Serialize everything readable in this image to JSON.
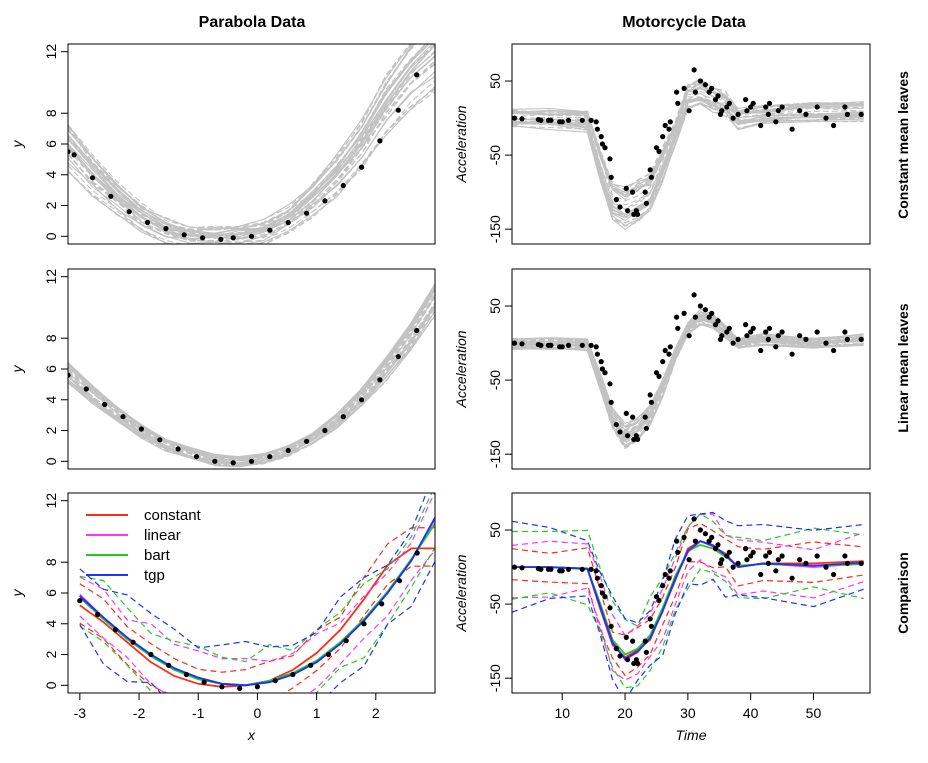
{
  "figure": {
    "col_titles": [
      "Parabola Data",
      "Motorcycle Data"
    ],
    "row_labels": [
      "Constant mean leaves",
      "Linear mean leaves",
      "Comparison"
    ]
  },
  "chart_data": [
    {
      "id": "parabola-constant",
      "type": "line",
      "title": "Parabola Data",
      "xlabel": "",
      "ylabel": "y",
      "xlim": [
        -3,
        3
      ],
      "ylim": [
        -0.5,
        12.5
      ],
      "yticks": [
        0,
        2,
        4,
        6,
        8,
        12
      ],
      "show_xticks": false,
      "band": "grey-posterior-draws",
      "series": [
        {
          "values_x": [
            -3,
            -2.6,
            -2.2,
            -1.8,
            -1.4,
            -1.0,
            -0.6,
            -0.2,
            0.2,
            0.6,
            1.0,
            1.4,
            1.8,
            2.2,
            2.6,
            3.0
          ],
          "values_y": [
            5.8,
            4.0,
            2.5,
            1.2,
            0.4,
            0.0,
            -0.1,
            0.0,
            0.3,
            1.1,
            2.4,
            4.0,
            6.0,
            8.5,
            10.5,
            12.0
          ]
        }
      ],
      "points_x": [
        -3.0,
        -2.9,
        -2.6,
        -2.3,
        -2.0,
        -1.7,
        -1.4,
        -1.1,
        -0.8,
        -0.5,
        -0.3,
        0.0,
        0.3,
        0.6,
        0.9,
        1.2,
        1.5,
        1.8,
        2.1,
        2.4,
        2.7
      ],
      "points_y": [
        5.5,
        5.3,
        3.8,
        2.6,
        1.6,
        0.9,
        0.5,
        0.1,
        -0.1,
        -0.2,
        -0.1,
        0.0,
        0.4,
        0.9,
        1.5,
        2.3,
        3.3,
        4.5,
        6.2,
        8.2,
        10.5
      ]
    },
    {
      "id": "motorcycle-constant",
      "type": "line",
      "title": "Motorcycle Data",
      "xlabel": "",
      "ylabel": "Acceleration",
      "xlim": [
        2,
        59
      ],
      "ylim": [
        -170,
        100
      ],
      "yticks": [
        -150,
        -50,
        50
      ],
      "show_xticks": false,
      "band": "grey-posterior-draws",
      "series": [
        {
          "values_x": [
            2,
            8,
            14,
            16,
            18,
            20,
            22,
            24,
            26,
            28,
            30,
            32,
            34,
            36,
            38,
            42,
            50,
            58
          ],
          "values_y": [
            0,
            0,
            -2,
            -60,
            -110,
            -120,
            -110,
            -100,
            -60,
            -20,
            30,
            35,
            25,
            20,
            0,
            5,
            10,
            10
          ]
        }
      ],
      "points_x": [
        2.4,
        3.6,
        6.2,
        6.6,
        7.8,
        8.2,
        9.6,
        10.0,
        11.0,
        13.2,
        14.6,
        15.4,
        15.6,
        16.2,
        16.4,
        16.8,
        17.6,
        17.8,
        18.6,
        19.2,
        20.2,
        20.4,
        21.2,
        21.4,
        21.8,
        22.0,
        23.2,
        23.4,
        24.0,
        24.2,
        25.0,
        25.4,
        26.0,
        26.4,
        27.0,
        27.2,
        28.2,
        28.4,
        29.4,
        30.2,
        31.0,
        31.2,
        32.0,
        32.8,
        33.4,
        33.8,
        34.4,
        34.8,
        35.2,
        35.4,
        36.2,
        36.6,
        37.2,
        38.0,
        39.2,
        39.4,
        40.0,
        40.4,
        41.6,
        42.4,
        42.8,
        43.0,
        44.0,
        44.4,
        45.0,
        46.6,
        47.8,
        48.8,
        50.6,
        52.0,
        53.2,
        55.0,
        55.4,
        57.6
      ],
      "points_y": [
        0,
        -1,
        -2,
        -3,
        -3,
        -3,
        -5,
        -5,
        -3,
        -3,
        -3,
        -5,
        -15,
        -25,
        -35,
        -40,
        -55,
        -80,
        -110,
        -120,
        -95,
        -125,
        -100,
        -130,
        -125,
        -130,
        -100,
        -115,
        -70,
        -80,
        -40,
        -45,
        -25,
        -10,
        -15,
        -5,
        35,
        20,
        40,
        10,
        65,
        35,
        50,
        45,
        35,
        40,
        25,
        30,
        5,
        10,
        15,
        20,
        0,
        5,
        25,
        10,
        15,
        20,
        -10,
        15,
        5,
        20,
        -5,
        10,
        15,
        -15,
        10,
        5,
        15,
        0,
        -10,
        15,
        5,
        5
      ]
    },
    {
      "id": "parabola-linear",
      "type": "line",
      "title": "",
      "xlabel": "",
      "ylabel": "y",
      "xlim": [
        -3,
        3
      ],
      "ylim": [
        -0.5,
        12.5
      ],
      "yticks": [
        0,
        2,
        4,
        6,
        8,
        12
      ],
      "show_xticks": false,
      "band": "grey-posterior-draws",
      "series": [
        {
          "values_x": [
            -3,
            -2.6,
            -2.2,
            -1.8,
            -1.4,
            -1.0,
            -0.6,
            -0.2,
            0.2,
            0.6,
            1.0,
            1.4,
            1.8,
            2.2,
            2.6,
            3.0
          ],
          "values_y": [
            5.8,
            4.4,
            3.1,
            2.0,
            1.1,
            0.5,
            0.1,
            0.0,
            0.2,
            0.7,
            1.5,
            2.7,
            4.2,
            6.0,
            8.1,
            10.6
          ]
        }
      ],
      "points_x": [
        -3.0,
        -2.7,
        -2.4,
        -2.1,
        -1.8,
        -1.5,
        -1.2,
        -0.9,
        -0.6,
        -0.3,
        0.0,
        0.3,
        0.6,
        0.9,
        1.2,
        1.5,
        1.8,
        2.1,
        2.4,
        2.7
      ],
      "points_y": [
        5.6,
        4.7,
        3.7,
        2.9,
        2.1,
        1.4,
        0.8,
        0.3,
        0.0,
        -0.1,
        0.0,
        0.3,
        0.7,
        1.3,
        2.0,
        2.9,
        4.0,
        5.3,
        6.8,
        8.5
      ]
    },
    {
      "id": "motorcycle-linear",
      "type": "line",
      "title": "",
      "xlabel": "",
      "ylabel": "Acceleration",
      "xlim": [
        2,
        59
      ],
      "ylim": [
        -170,
        100
      ],
      "yticks": [
        -150,
        -50,
        50
      ],
      "show_xticks": false,
      "band": "grey-posterior-draws",
      "series": [
        {
          "values_x": [
            2,
            8,
            14,
            16,
            18,
            20,
            22,
            24,
            26,
            28,
            30,
            32,
            34,
            36,
            38,
            42,
            50,
            58
          ],
          "values_y": [
            0,
            0,
            -2,
            -50,
            -100,
            -125,
            -115,
            -95,
            -60,
            -15,
            20,
            35,
            30,
            15,
            0,
            5,
            0,
            5
          ]
        }
      ],
      "points_x": [
        2.4,
        3.6,
        6.2,
        6.6,
        7.8,
        8.2,
        9.6,
        10.0,
        11.0,
        13.2,
        14.6,
        15.4,
        15.6,
        16.2,
        16.4,
        16.8,
        17.6,
        17.8,
        18.6,
        19.2,
        20.2,
        20.4,
        21.2,
        21.4,
        21.8,
        22.0,
        23.2,
        23.4,
        24.0,
        24.2,
        25.0,
        25.4,
        26.0,
        26.4,
        27.0,
        27.2,
        28.2,
        28.4,
        29.4,
        30.2,
        31.0,
        31.2,
        32.0,
        32.8,
        33.4,
        33.8,
        34.4,
        34.8,
        35.2,
        35.4,
        36.2,
        36.6,
        37.2,
        38.0,
        39.2,
        39.4,
        40.0,
        40.4,
        41.6,
        42.4,
        42.8,
        43.0,
        44.0,
        44.4,
        45.0,
        46.6,
        47.8,
        48.8,
        50.6,
        52.0,
        53.2,
        55.0,
        55.4,
        57.6
      ],
      "points_y": [
        0,
        -1,
        -2,
        -3,
        -3,
        -3,
        -5,
        -5,
        -3,
        -3,
        -3,
        -5,
        -15,
        -25,
        -35,
        -40,
        -55,
        -80,
        -110,
        -120,
        -95,
        -125,
        -100,
        -130,
        -125,
        -130,
        -100,
        -115,
        -70,
        -80,
        -40,
        -45,
        -25,
        -10,
        -15,
        -5,
        35,
        20,
        40,
        10,
        65,
        35,
        50,
        45,
        35,
        40,
        25,
        30,
        5,
        10,
        15,
        20,
        0,
        5,
        25,
        10,
        15,
        20,
        -10,
        15,
        5,
        20,
        -5,
        10,
        15,
        -15,
        10,
        5,
        15,
        0,
        -10,
        15,
        5,
        5
      ]
    },
    {
      "id": "parabola-comparison",
      "type": "line",
      "title": "",
      "xlabel": "x",
      "ylabel": "y",
      "xlim": [
        -3.2,
        3.0
      ],
      "ylim": [
        -0.5,
        12.5
      ],
      "yticks": [
        0,
        2,
        4,
        6,
        8,
        12
      ],
      "xticks": [
        -3,
        -2,
        -1,
        0,
        1,
        2
      ],
      "show_xticks": true,
      "legend": {
        "position": "top-left"
      },
      "series": [
        {
          "name": "constant",
          "color": "#ff2a1a",
          "values_x": [
            -3,
            -2.6,
            -2.2,
            -1.8,
            -1.4,
            -1.0,
            -0.6,
            -0.2,
            0.2,
            0.6,
            1.0,
            1.4,
            1.8,
            2.2,
            2.6,
            3.0
          ],
          "values_y": [
            5.2,
            4.1,
            2.8,
            1.5,
            0.6,
            0.1,
            -0.1,
            0.0,
            0.3,
            1.0,
            2.1,
            3.6,
            5.6,
            7.8,
            8.9,
            8.9
          ]
        },
        {
          "name": "linear",
          "color": "#ff33ff",
          "values_x": [
            -3,
            -2.6,
            -2.2,
            -1.8,
            -1.4,
            -1.0,
            -0.6,
            -0.2,
            0.2,
            0.6,
            1.0,
            1.4,
            1.8,
            2.2,
            2.6,
            3.0
          ],
          "values_y": [
            5.9,
            4.4,
            3.1,
            2.0,
            1.1,
            0.5,
            0.1,
            0.0,
            0.2,
            0.7,
            1.5,
            2.7,
            4.2,
            6.0,
            8.1,
            10.8
          ]
        },
        {
          "name": "bart",
          "color": "#22cc22",
          "values_x": [
            -3,
            -2.6,
            -2.2,
            -1.8,
            -1.4,
            -1.0,
            -0.6,
            -0.2,
            0.2,
            0.6,
            1.0,
            1.4,
            1.8,
            2.2,
            2.6,
            3.0
          ],
          "values_y": [
            5.7,
            4.3,
            3.0,
            1.9,
            1.0,
            0.4,
            0.1,
            0.0,
            0.3,
            0.8,
            1.6,
            2.8,
            4.3,
            6.1,
            8.2,
            10.5
          ]
        },
        {
          "name": "tgp",
          "color": "#1a33ff",
          "values_x": [
            -3,
            -2.6,
            -2.2,
            -1.8,
            -1.4,
            -1.0,
            -0.6,
            -0.2,
            0.2,
            0.6,
            1.0,
            1.4,
            1.8,
            2.2,
            2.6,
            3.0
          ],
          "values_y": [
            5.8,
            4.4,
            3.1,
            2.0,
            1.1,
            0.5,
            0.1,
            0.0,
            0.2,
            0.7,
            1.5,
            2.7,
            4.2,
            6.0,
            8.1,
            10.9
          ]
        }
      ],
      "points_x": [
        -3.0,
        -2.7,
        -2.4,
        -2.1,
        -1.8,
        -1.5,
        -1.2,
        -0.9,
        -0.6,
        -0.3,
        0.0,
        0.3,
        0.6,
        0.9,
        1.2,
        1.5,
        1.8,
        2.1,
        2.4,
        2.7
      ],
      "points_y": [
        5.5,
        4.6,
        3.6,
        2.8,
        2.0,
        1.3,
        0.7,
        0.2,
        -0.1,
        -0.2,
        -0.1,
        0.3,
        0.7,
        1.3,
        2.0,
        2.9,
        4.0,
        5.3,
        6.8,
        8.6
      ]
    },
    {
      "id": "motorcycle-comparison",
      "type": "line",
      "title": "",
      "xlabel": "Time",
      "ylabel": "Acceleration",
      "xlim": [
        2,
        59
      ],
      "ylim": [
        -170,
        100
      ],
      "yticks": [
        -150,
        -50,
        50
      ],
      "xticks": [
        10,
        20,
        30,
        40,
        50
      ],
      "show_xticks": true,
      "series": [
        {
          "name": "constant",
          "color": "#ff2a1a",
          "values_x": [
            2,
            8,
            14,
            16,
            18,
            20,
            22,
            24,
            26,
            28,
            30,
            32,
            34,
            36,
            38,
            42,
            50,
            58
          ],
          "values_y": [
            0,
            0,
            -2,
            -55,
            -105,
            -122,
            -112,
            -98,
            -58,
            -18,
            25,
            35,
            28,
            18,
            0,
            5,
            5,
            8
          ]
        },
        {
          "name": "linear",
          "color": "#ff33ff",
          "values_x": [
            2,
            8,
            14,
            16,
            18,
            20,
            22,
            24,
            26,
            28,
            30,
            32,
            34,
            36,
            38,
            42,
            50,
            58
          ],
          "values_y": [
            0,
            0,
            -2,
            -50,
            -100,
            -125,
            -115,
            -95,
            -60,
            -15,
            20,
            35,
            30,
            15,
            0,
            5,
            0,
            5
          ]
        },
        {
          "name": "bart",
          "color": "#22cc22",
          "values_x": [
            2,
            8,
            14,
            16,
            18,
            20,
            22,
            24,
            26,
            28,
            30,
            32,
            34,
            36,
            38,
            42,
            50,
            58
          ],
          "values_y": [
            0,
            0,
            -3,
            -48,
            -98,
            -118,
            -110,
            -92,
            -55,
            -12,
            22,
            30,
            25,
            14,
            2,
            4,
            2,
            4
          ]
        },
        {
          "name": "tgp",
          "color": "#1a33ff",
          "values_x": [
            2,
            8,
            14,
            16,
            18,
            20,
            22,
            24,
            26,
            28,
            30,
            32,
            34,
            36,
            38,
            42,
            50,
            58
          ],
          "values_y": [
            0,
            0,
            -2,
            -52,
            -102,
            -124,
            -114,
            -96,
            -59,
            -16,
            22,
            35,
            29,
            16,
            0,
            5,
            2,
            6
          ]
        }
      ],
      "points_x": [
        2.4,
        3.6,
        6.2,
        6.6,
        7.8,
        8.2,
        9.6,
        10.0,
        11.0,
        13.2,
        14.6,
        15.4,
        15.6,
        16.2,
        16.4,
        16.8,
        17.6,
        17.8,
        18.6,
        19.2,
        20.2,
        20.4,
        21.2,
        21.4,
        21.8,
        22.0,
        23.2,
        23.4,
        24.0,
        24.2,
        25.0,
        25.4,
        26.0,
        26.4,
        27.0,
        27.2,
        28.2,
        28.4,
        29.4,
        30.2,
        31.0,
        31.2,
        32.0,
        32.8,
        33.4,
        33.8,
        34.4,
        34.8,
        35.2,
        35.4,
        36.2,
        36.6,
        37.2,
        38.0,
        39.2,
        39.4,
        40.0,
        40.4,
        41.6,
        42.4,
        42.8,
        43.0,
        44.0,
        44.4,
        45.0,
        46.6,
        47.8,
        48.8,
        50.6,
        52.0,
        53.2,
        55.0,
        55.4,
        57.6
      ],
      "points_y": [
        0,
        -1,
        -2,
        -3,
        -3,
        -3,
        -5,
        -5,
        -3,
        -3,
        -3,
        -5,
        -15,
        -25,
        -35,
        -40,
        -55,
        -80,
        -110,
        -120,
        -95,
        -125,
        -100,
        -130,
        -125,
        -130,
        -100,
        -115,
        -70,
        -80,
        -40,
        -45,
        -25,
        -10,
        -15,
        -5,
        35,
        20,
        40,
        10,
        65,
        35,
        50,
        45,
        35,
        40,
        25,
        30,
        5,
        10,
        15,
        20,
        0,
        5,
        25,
        10,
        15,
        20,
        -10,
        15,
        5,
        20,
        -5,
        10,
        15,
        -15,
        10,
        5,
        15,
        0,
        -10,
        15,
        5,
        5
      ]
    }
  ]
}
